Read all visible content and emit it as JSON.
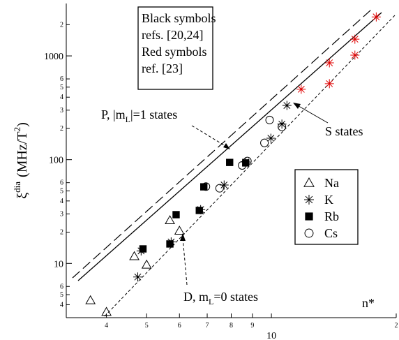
{
  "chart_data": {
    "type": "scatter",
    "x_label": "n*",
    "y_label": {
      "symbol": "ξ",
      "sup": "dia",
      "unit": "(MHz/T",
      "unit_sup": "2",
      "close": ")"
    },
    "xscale": "log",
    "yscale": "log",
    "xlim": [
      3.2,
      20
    ],
    "ylim": [
      3,
      3200
    ],
    "xticks": [
      4,
      5,
      6,
      7,
      8,
      9,
      10,
      {
        "value": 20,
        "label": "2"
      }
    ],
    "yticks": [
      4,
      5,
      6,
      10,
      {
        "value": 20,
        "label": "2"
      },
      {
        "value": 30,
        "label": "3"
      },
      {
        "value": 40,
        "label": "4"
      },
      {
        "value": 50,
        "label": "5"
      },
      {
        "value": 60,
        "label": "6"
      },
      100,
      {
        "value": 200,
        "label": "2"
      },
      {
        "value": 300,
        "label": "3"
      },
      {
        "value": 400,
        "label": "4"
      },
      {
        "value": 500,
        "label": "5"
      },
      {
        "value": 600,
        "label": "6"
      },
      1000,
      {
        "value": 2000,
        "label": "2"
      }
    ],
    "note_box": [
      "Black symbols",
      "refs. [20,24]",
      "Red symbols",
      "ref. [23]"
    ],
    "annotations": {
      "p_states": {
        "a": "P, |m",
        "sub": "L",
        "b": "|=1 states"
      },
      "s_states": "S states",
      "d_states": {
        "a": "D, m",
        "sub": "L",
        "b": "=0 states"
      }
    },
    "series": [
      {
        "name": "Na",
        "marker": "triangle",
        "color": "#000000",
        "x": [
          3.66,
          4.0,
          4.67,
          5.0,
          5.69,
          6.0
        ],
        "values": [
          4.4,
          3.4,
          11.7,
          9.7,
          26,
          20.6
        ]
      },
      {
        "name": "K",
        "marker": "asterisk",
        "color": "#000000",
        "point_colors": [
          "#000000",
          "#000000",
          "#000000",
          "#000000",
          "#000000",
          "#000000",
          "#000000",
          "#000000",
          "#000000",
          "#e00000",
          "#e00000",
          "#e00000",
          "#e00000",
          "#e00000",
          "#e00000"
        ],
        "x": [
          4.76,
          4.85,
          5.73,
          6.75,
          7.69,
          8.67,
          9.97,
          10.6,
          10.9,
          11.8,
          13.8,
          13.8,
          15.9,
          15.9,
          17.9
        ],
        "values": [
          7.4,
          13.2,
          16.1,
          33,
          57,
          95,
          161,
          220,
          333,
          477,
          857,
          540,
          1450,
          1016,
          2377
        ]
      },
      {
        "name": "Rb",
        "marker": "square",
        "color": "#000000",
        "x": [
          4.9,
          5.89,
          5.69,
          6.87,
          6.7,
          7.93,
          8.67
        ],
        "values": [
          13.8,
          29.5,
          15.4,
          54.7,
          32.4,
          94,
          93
        ]
      },
      {
        "name": "Cs",
        "marker": "circle",
        "color": "#000000",
        "x": [
          6.95,
          7.5,
          8.5,
          8.75,
          9.62,
          9.9,
          10.6
        ],
        "values": [
          55,
          53,
          88,
          97,
          145,
          241,
          207
        ]
      }
    ]
  }
}
